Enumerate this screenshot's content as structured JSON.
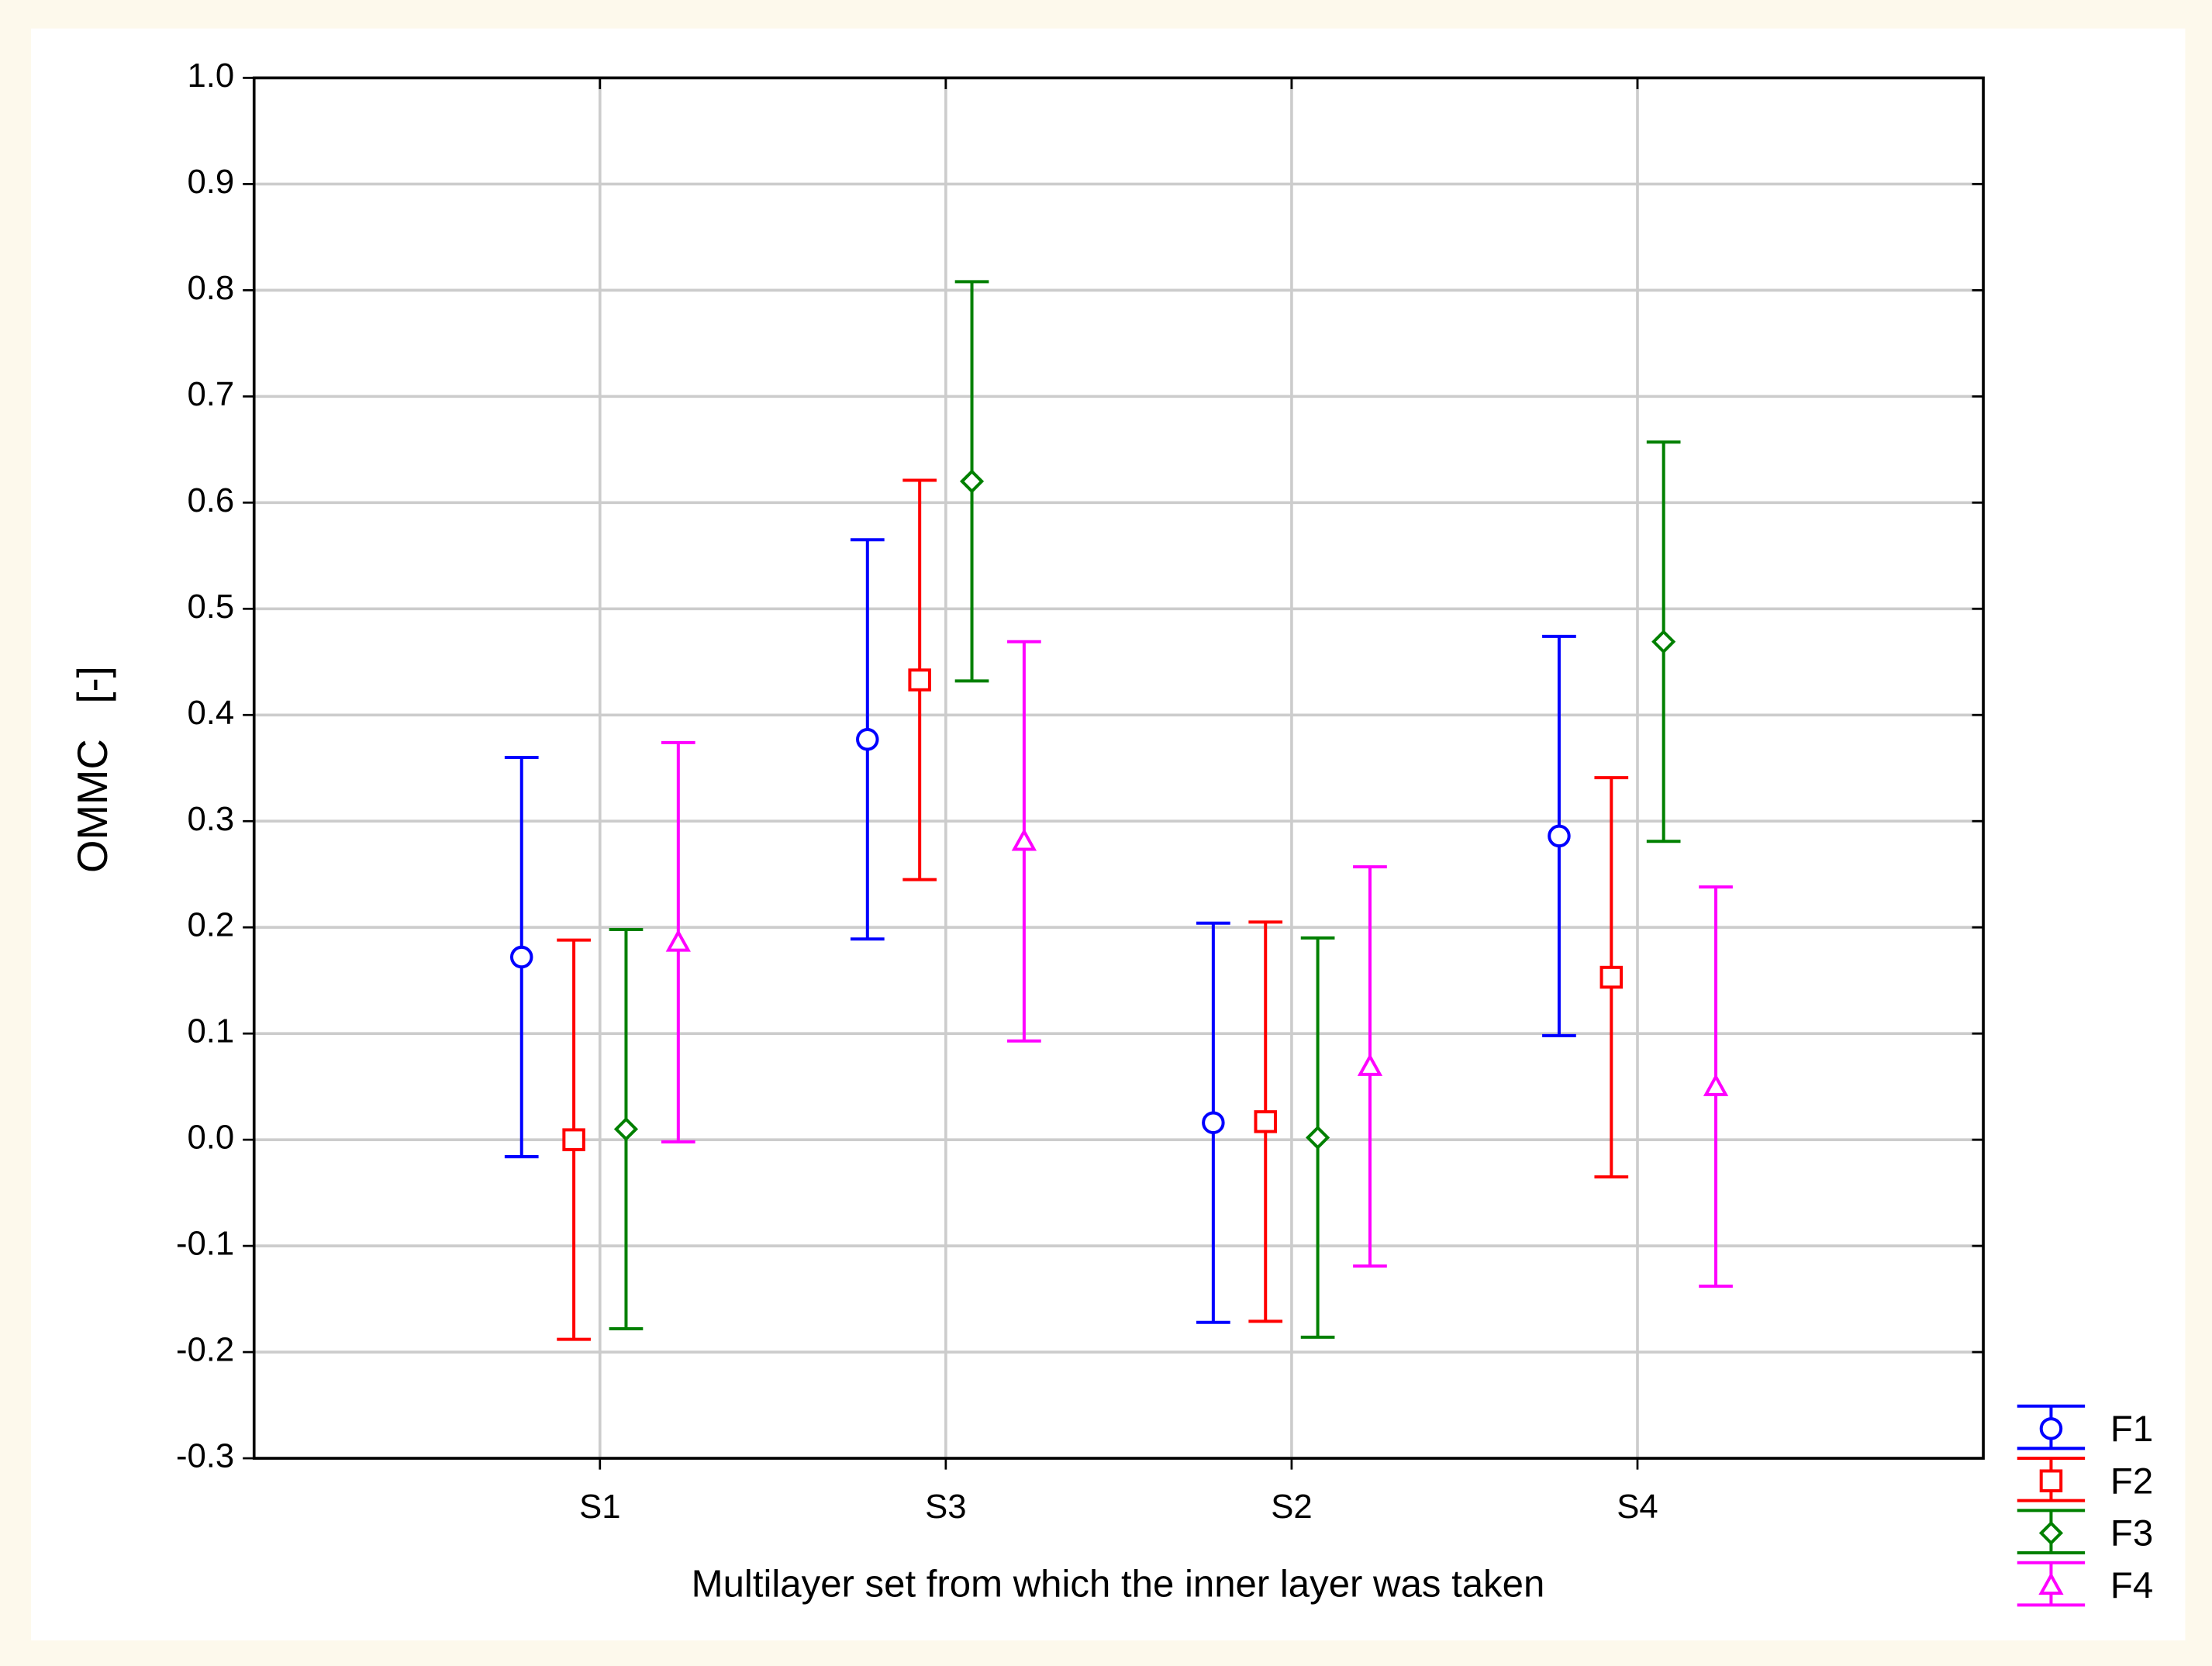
{
  "chart_data": {
    "type": "errorbar",
    "x_label": "Multilayer set from which the inner layer was taken",
    "y_label": "OMMC   [-]",
    "categories": [
      "S1",
      "S3",
      "S2",
      "S4"
    ],
    "ylim": [
      -0.3,
      1.0
    ],
    "yticks": [
      -0.3,
      -0.2,
      -0.1,
      {
        "value": 0,
        "label": "0.0"
      },
      0.1,
      0.2,
      0.3,
      0.4,
      0.5,
      0.6,
      0.7,
      0.8,
      0.9,
      {
        "value": 1,
        "label": "1.0"
      }
    ],
    "grid": true,
    "legend": "lower right",
    "series": [
      {
        "name": "F1",
        "color": "#0000ff",
        "marker": "circle",
        "values": [
          0.172,
          0.377,
          0.016,
          0.286
        ],
        "errors": [
          0.188,
          0.188,
          0.188,
          0.188
        ]
      },
      {
        "name": "F2",
        "color": "#ff0000",
        "marker": "square",
        "values": [
          0.0,
          0.433,
          0.017,
          0.153
        ],
        "errors": [
          0.188,
          0.188,
          0.188,
          0.188
        ]
      },
      {
        "name": "F3",
        "color": "#008000",
        "marker": "diamond",
        "values": [
          0.01,
          0.62,
          0.002,
          0.469
        ],
        "errors": [
          0.188,
          0.188,
          0.188,
          0.188
        ]
      },
      {
        "name": "F4",
        "color": "#ff00ff",
        "marker": "triangle",
        "values": [
          0.186,
          0.281,
          0.069,
          0.05
        ],
        "errors": [
          0.188,
          0.188,
          0.188,
          0.188
        ]
      }
    ]
  }
}
